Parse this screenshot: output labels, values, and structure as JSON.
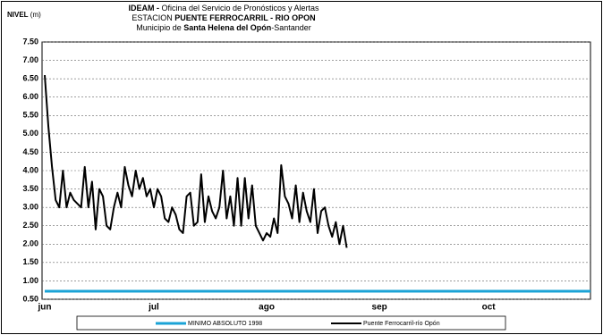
{
  "chart_data": {
    "type": "line",
    "title_lines": [
      [
        "IDEAM - ",
        "Oficina del Servicio de Pronósticos y Alertas"
      ],
      [
        "ESTACION ",
        "PUENTE FERROCARRIL - RIO OPON"
      ],
      [
        "Municipio de ",
        "Santa Helena del Opón",
        "-Santander"
      ]
    ],
    "y_label": [
      "NIVEL",
      " (m)"
    ],
    "categories": [
      "jun",
      null,
      null,
      null,
      null,
      null,
      null,
      null,
      null,
      null,
      null,
      null,
      null,
      null,
      null,
      null,
      null,
      null,
      null,
      null,
      null,
      null,
      null,
      null,
      null,
      null,
      null,
      null,
      null,
      null,
      "jul",
      null,
      null,
      null,
      null,
      null,
      null,
      null,
      null,
      null,
      null,
      null,
      null,
      null,
      null,
      null,
      null,
      null,
      null,
      null,
      null,
      null,
      null,
      null,
      null,
      null,
      null,
      null,
      null,
      null,
      null,
      "ago",
      null,
      null,
      null,
      null,
      null,
      null,
      null,
      null,
      null,
      null,
      null,
      null,
      null,
      null,
      null,
      null,
      null,
      null,
      null,
      null,
      null,
      null,
      null,
      null,
      null,
      null,
      null,
      null,
      null,
      null,
      "sep",
      null,
      null,
      null,
      null,
      null,
      null,
      null,
      null,
      null,
      null,
      null,
      null,
      null,
      null,
      null,
      null,
      null,
      null,
      null,
      null,
      null,
      null,
      null,
      null,
      null,
      null,
      null,
      null,
      null,
      "oct",
      null,
      null,
      null,
      null,
      null,
      null,
      null,
      null,
      null,
      null,
      null,
      null,
      null,
      null,
      null,
      null,
      null,
      null,
      null,
      null,
      null,
      null,
      null,
      null,
      null,
      null,
      null,
      null
    ],
    "series": [
      {
        "name": "MINIMO ABSOLUTO 1998",
        "color": "#1ba3d6",
        "width": 3,
        "values": [
          0.72,
          0.72,
          0.72,
          0.72,
          0.72,
          0.72,
          0.72,
          0.72,
          0.72,
          0.72,
          0.72,
          0.72,
          0.72,
          0.72,
          0.72,
          0.72,
          0.72,
          0.72,
          0.72,
          0.72,
          0.72,
          0.72,
          0.72,
          0.72,
          0.72,
          0.72,
          0.72,
          0.72,
          0.72,
          0.72,
          0.72,
          0.72,
          0.72,
          0.72,
          0.72,
          0.72,
          0.72,
          0.72,
          0.72,
          0.72,
          0.72,
          0.72,
          0.72,
          0.72,
          0.72,
          0.72,
          0.72,
          0.72,
          0.72,
          0.72,
          0.72,
          0.72,
          0.72,
          0.72,
          0.72,
          0.72,
          0.72,
          0.72,
          0.72,
          0.72,
          0.72,
          0.72,
          0.72,
          0.72,
          0.72,
          0.72,
          0.72,
          0.72,
          0.72,
          0.72,
          0.72,
          0.72,
          0.72,
          0.72,
          0.72,
          0.72,
          0.72,
          0.72,
          0.72,
          0.72,
          0.72,
          0.72,
          0.72,
          0.72,
          0.72,
          0.72,
          0.72,
          0.72,
          0.72,
          0.72,
          0.72,
          0.72,
          0.72,
          0.72,
          0.72,
          0.72,
          0.72,
          0.72,
          0.72,
          0.72,
          0.72,
          0.72,
          0.72,
          0.72,
          0.72,
          0.72,
          0.72,
          0.72,
          0.72,
          0.72,
          0.72,
          0.72,
          0.72,
          0.72,
          0.72,
          0.72,
          0.72,
          0.72,
          0.72,
          0.72,
          0.72,
          0.72,
          0.72,
          0.72,
          0.72,
          0.72,
          0.72,
          0.72,
          0.72,
          0.72,
          0.72,
          0.72,
          0.72,
          0.72,
          0.72,
          0.72,
          0.72,
          0.72,
          0.72,
          0.72,
          0.72,
          0.72,
          0.72,
          0.72,
          0.72,
          0.72,
          0.72,
          0.72,
          0.72,
          0.72,
          0.72
        ]
      },
      {
        "name": "Puente Ferrocarril-río Opón",
        "color": "#000000",
        "width": 2,
        "values": [
          6.6,
          5.2,
          4.1,
          3.2,
          3.0,
          4.0,
          3.0,
          3.4,
          3.2,
          3.1,
          3.0,
          4.1,
          3.0,
          3.7,
          2.4,
          3.5,
          3.3,
          2.5,
          2.4,
          3.0,
          3.4,
          3.0,
          4.1,
          3.6,
          3.3,
          4.0,
          3.5,
          3.8,
          3.3,
          3.5,
          3.0,
          3.5,
          3.3,
          2.7,
          2.6,
          3.0,
          2.8,
          2.4,
          2.3,
          3.3,
          3.4,
          2.5,
          2.6,
          3.9,
          2.6,
          3.3,
          2.9,
          2.7,
          3.0,
          4.0,
          2.7,
          3.3,
          2.5,
          3.8,
          2.5,
          3.8,
          2.7,
          3.6,
          2.5,
          2.3,
          2.1,
          2.3,
          2.2,
          2.7,
          2.3,
          4.15,
          3.3,
          3.1,
          2.7,
          3.6,
          2.6,
          3.4,
          2.9,
          2.6,
          3.5,
          2.3,
          2.9,
          3.0,
          2.5,
          2.2,
          2.6,
          2.0,
          2.5,
          1.9,
          null,
          null,
          null,
          null,
          null,
          null,
          null,
          null,
          null,
          null,
          null,
          null,
          null,
          null,
          null,
          null,
          null,
          null,
          null,
          null,
          null,
          null,
          null,
          null,
          null,
          null,
          null,
          null,
          null,
          null,
          null,
          null,
          null,
          null,
          null,
          null,
          null,
          null,
          null,
          null,
          null,
          null,
          null,
          null,
          null,
          null,
          null,
          null,
          null,
          null,
          null,
          null,
          null,
          null,
          null,
          null,
          null,
          null,
          null,
          null,
          null,
          null,
          null,
          null,
          null,
          null,
          null
        ]
      }
    ],
    "ylim": [
      0.5,
      7.5
    ],
    "yticks": [
      {
        "value": 7.5,
        "label": "7.50"
      },
      {
        "value": 7.0,
        "label": "7.00"
      },
      {
        "value": 6.5,
        "label": "6.50"
      },
      {
        "value": 6.0,
        "label": "6.00"
      },
      {
        "value": 5.5,
        "label": "5.50"
      },
      {
        "value": 5.0,
        "label": "5.00"
      },
      {
        "value": 4.5,
        "label": "4.50"
      },
      {
        "value": 4.0,
        "label": "4.00"
      },
      {
        "value": 3.5,
        "label": "3.50"
      },
      {
        "value": 3.0,
        "label": "3.00"
      },
      {
        "value": 2.5,
        "label": "2.50"
      },
      {
        "value": 2.0,
        "label": "2.00"
      },
      {
        "value": 1.5,
        "label": "1.50"
      },
      {
        "value": 1.0,
        "label": "1.00"
      },
      {
        "value": 0.5,
        "label": "0.50"
      }
    ],
    "grid": true
  }
}
